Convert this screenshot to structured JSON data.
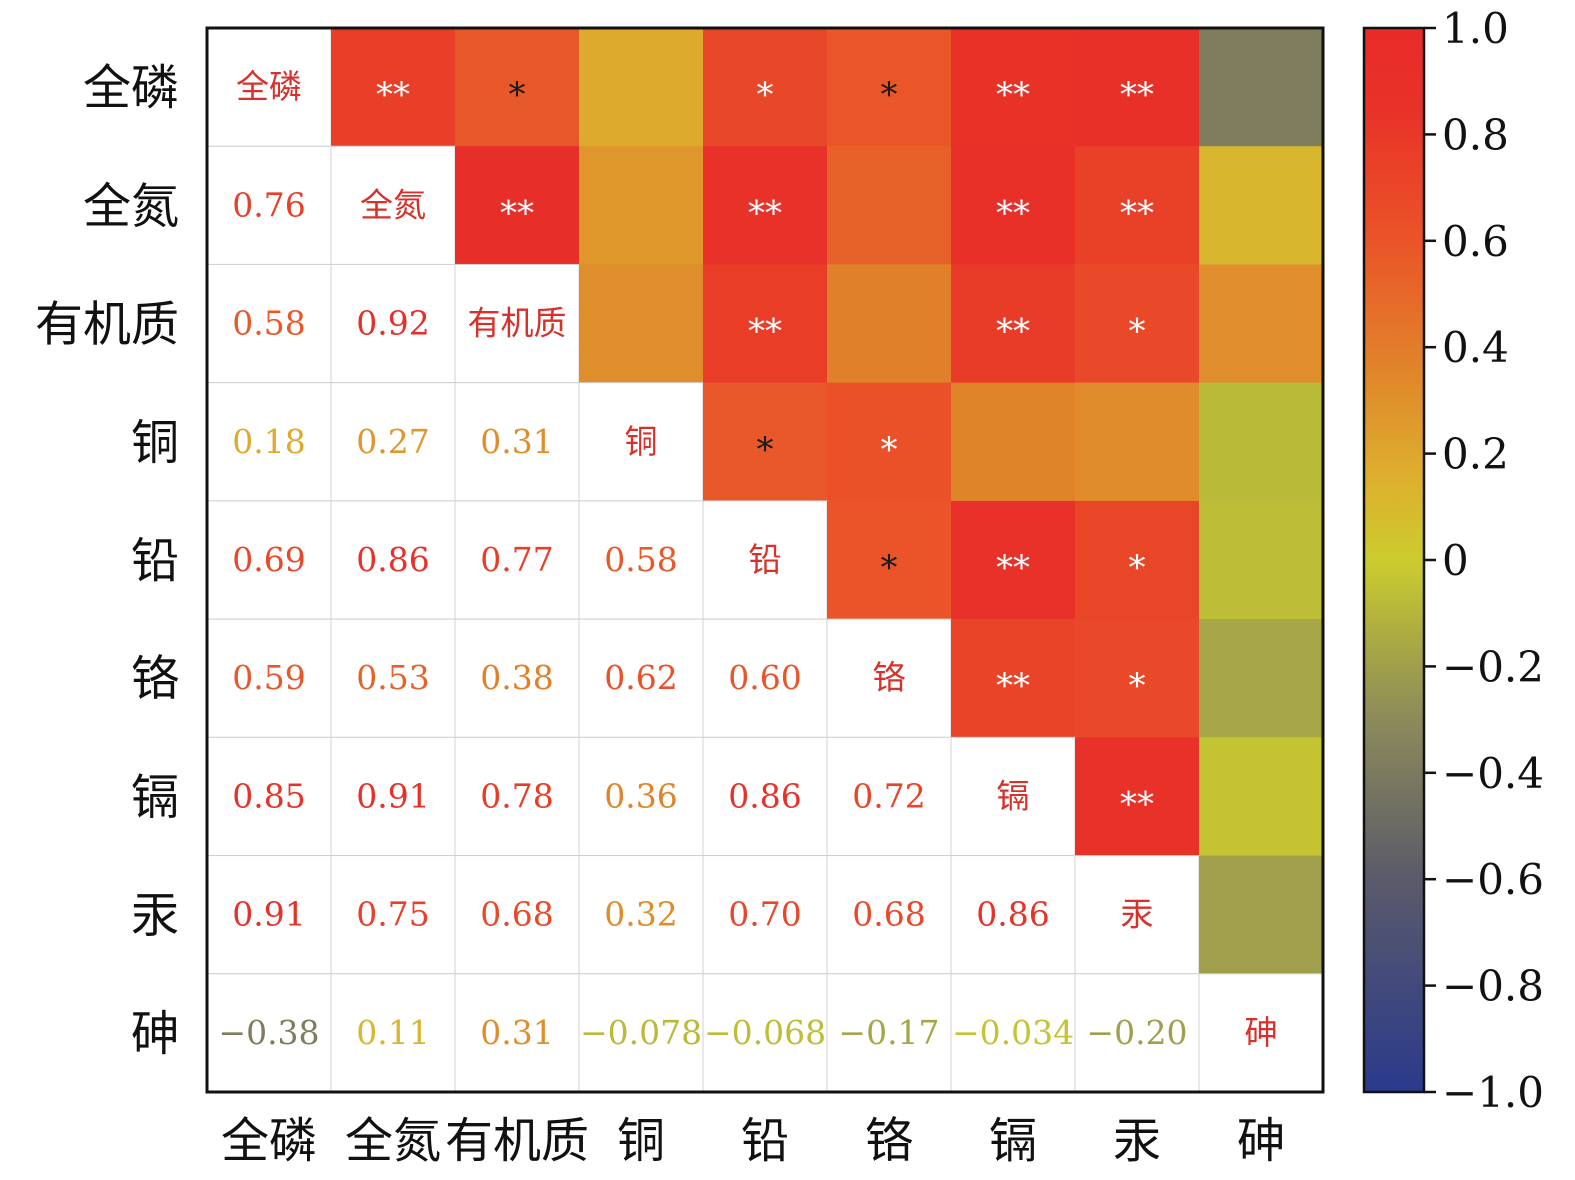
{
  "chart_data": {
    "type": "heatmap",
    "variables": [
      "全磷",
      "全氮",
      "有机质",
      "铜",
      "铅",
      "铬",
      "镉",
      "汞",
      "砷"
    ],
    "diagonal_labels": [
      "全磷",
      "全氮",
      "有机质",
      "铜",
      "铅",
      "铬",
      "镉",
      "汞",
      "砷"
    ],
    "matrix": [
      [
        1,
        0.76,
        0.58,
        0.18,
        0.69,
        0.59,
        0.85,
        0.91,
        -0.38
      ],
      [
        0.76,
        1,
        0.92,
        0.27,
        0.86,
        0.53,
        0.91,
        0.75,
        0.11
      ],
      [
        0.58,
        0.92,
        1,
        0.31,
        0.77,
        0.38,
        0.78,
        0.68,
        0.31
      ],
      [
        0.18,
        0.27,
        0.31,
        1,
        0.58,
        0.62,
        0.36,
        0.32,
        -0.078
      ],
      [
        0.69,
        0.86,
        0.77,
        0.58,
        1,
        0.6,
        0.86,
        0.7,
        -0.068
      ],
      [
        0.59,
        0.53,
        0.38,
        0.62,
        0.6,
        1,
        0.72,
        0.68,
        -0.17
      ],
      [
        0.85,
        0.91,
        0.78,
        0.36,
        0.86,
        0.72,
        1,
        0.86,
        -0.034
      ],
      [
        0.91,
        0.75,
        0.68,
        0.32,
        0.7,
        0.68,
        0.86,
        1,
        -0.2
      ],
      [
        -0.38,
        0.11,
        0.31,
        -0.078,
        -0.068,
        -0.17,
        -0.034,
        -0.2,
        1
      ]
    ],
    "lower_labels": [
      [
        null,
        null,
        null,
        null,
        null,
        null,
        null,
        null,
        null
      ],
      [
        "0.76",
        null,
        null,
        null,
        null,
        null,
        null,
        null,
        null
      ],
      [
        "0.58",
        "0.92",
        null,
        null,
        null,
        null,
        null,
        null,
        null
      ],
      [
        "0.18",
        "0.27",
        "0.31",
        null,
        null,
        null,
        null,
        null,
        null
      ],
      [
        "0.69",
        "0.86",
        "0.77",
        "0.58",
        null,
        null,
        null,
        null,
        null
      ],
      [
        "0.59",
        "0.53",
        "0.38",
        "0.62",
        "0.60",
        null,
        null,
        null,
        null
      ],
      [
        "0.85",
        "0.91",
        "0.78",
        "0.36",
        "0.86",
        "0.72",
        null,
        null,
        null
      ],
      [
        "0.91",
        "0.75",
        "0.68",
        "0.32",
        "0.70",
        "0.68",
        "0.86",
        null,
        null
      ],
      [
        "−0.38",
        "0.11",
        "0.31",
        "−0.078",
        "−0.068",
        "−0.17",
        "−0.034",
        "−0.20",
        null
      ]
    ],
    "significance": [
      [
        null,
        "**",
        "*",
        "",
        "*",
        "*",
        "**",
        "**",
        ""
      ],
      [
        null,
        null,
        "**",
        "",
        "**",
        "",
        "**",
        "**",
        ""
      ],
      [
        null,
        null,
        null,
        "",
        "**",
        "",
        "**",
        "*",
        ""
      ],
      [
        null,
        null,
        null,
        null,
        "*",
        "*",
        "",
        "",
        ""
      ],
      [
        null,
        null,
        null,
        null,
        null,
        "*",
        "**",
        "*",
        ""
      ],
      [
        null,
        null,
        null,
        null,
        null,
        null,
        "**",
        "*",
        ""
      ],
      [
        null,
        null,
        null,
        null,
        null,
        null,
        null,
        "**",
        ""
      ],
      [
        null,
        null,
        null,
        null,
        null,
        null,
        null,
        null,
        ""
      ],
      [
        null,
        null,
        null,
        null,
        null,
        null,
        null,
        null,
        null
      ]
    ],
    "significance_dark": [
      [
        false,
        false,
        true,
        false,
        false,
        true,
        false,
        false,
        false
      ],
      [
        false,
        false,
        false,
        false,
        false,
        false,
        false,
        false,
        false
      ],
      [
        false,
        false,
        false,
        false,
        false,
        false,
        false,
        false,
        false
      ],
      [
        false,
        false,
        false,
        false,
        true,
        false,
        false,
        false,
        false
      ],
      [
        false,
        false,
        false,
        false,
        false,
        true,
        false,
        false,
        false
      ],
      [
        false,
        false,
        false,
        false,
        false,
        false,
        false,
        false,
        false
      ],
      [
        false,
        false,
        false,
        false,
        false,
        false,
        false,
        false,
        false
      ],
      [
        false,
        false,
        false,
        false,
        false,
        false,
        false,
        false,
        false
      ],
      [
        false,
        false,
        false,
        false,
        false,
        false,
        false,
        false,
        false
      ]
    ],
    "colorbar": {
      "range": [
        -1.0,
        1.0
      ],
      "ticks": [
        1.0,
        0.8,
        0.6,
        0.4,
        0.2,
        0,
        -0.2,
        -0.4,
        -0.6,
        -0.8,
        -1.0
      ],
      "tick_labels": [
        "1.0",
        "0.8",
        "0.6",
        "0.4",
        "0.2",
        "0",
        "−0.2",
        "−0.4",
        "−0.6",
        "−0.8",
        "−1.0"
      ],
      "position": "right"
    },
    "colorscale": [
      [
        -1.0,
        "#2a3a8c"
      ],
      [
        -0.6,
        "#5a5a6a"
      ],
      [
        -0.3,
        "#8c8a5a"
      ],
      [
        -0.15,
        "#aaaa44"
      ],
      [
        0.0,
        "#cccc2e"
      ],
      [
        0.15,
        "#ddb02e"
      ],
      [
        0.35,
        "#e0862a"
      ],
      [
        0.6,
        "#ea5428"
      ],
      [
        0.85,
        "#e83228"
      ],
      [
        1.0,
        "#e82a28"
      ]
    ]
  }
}
